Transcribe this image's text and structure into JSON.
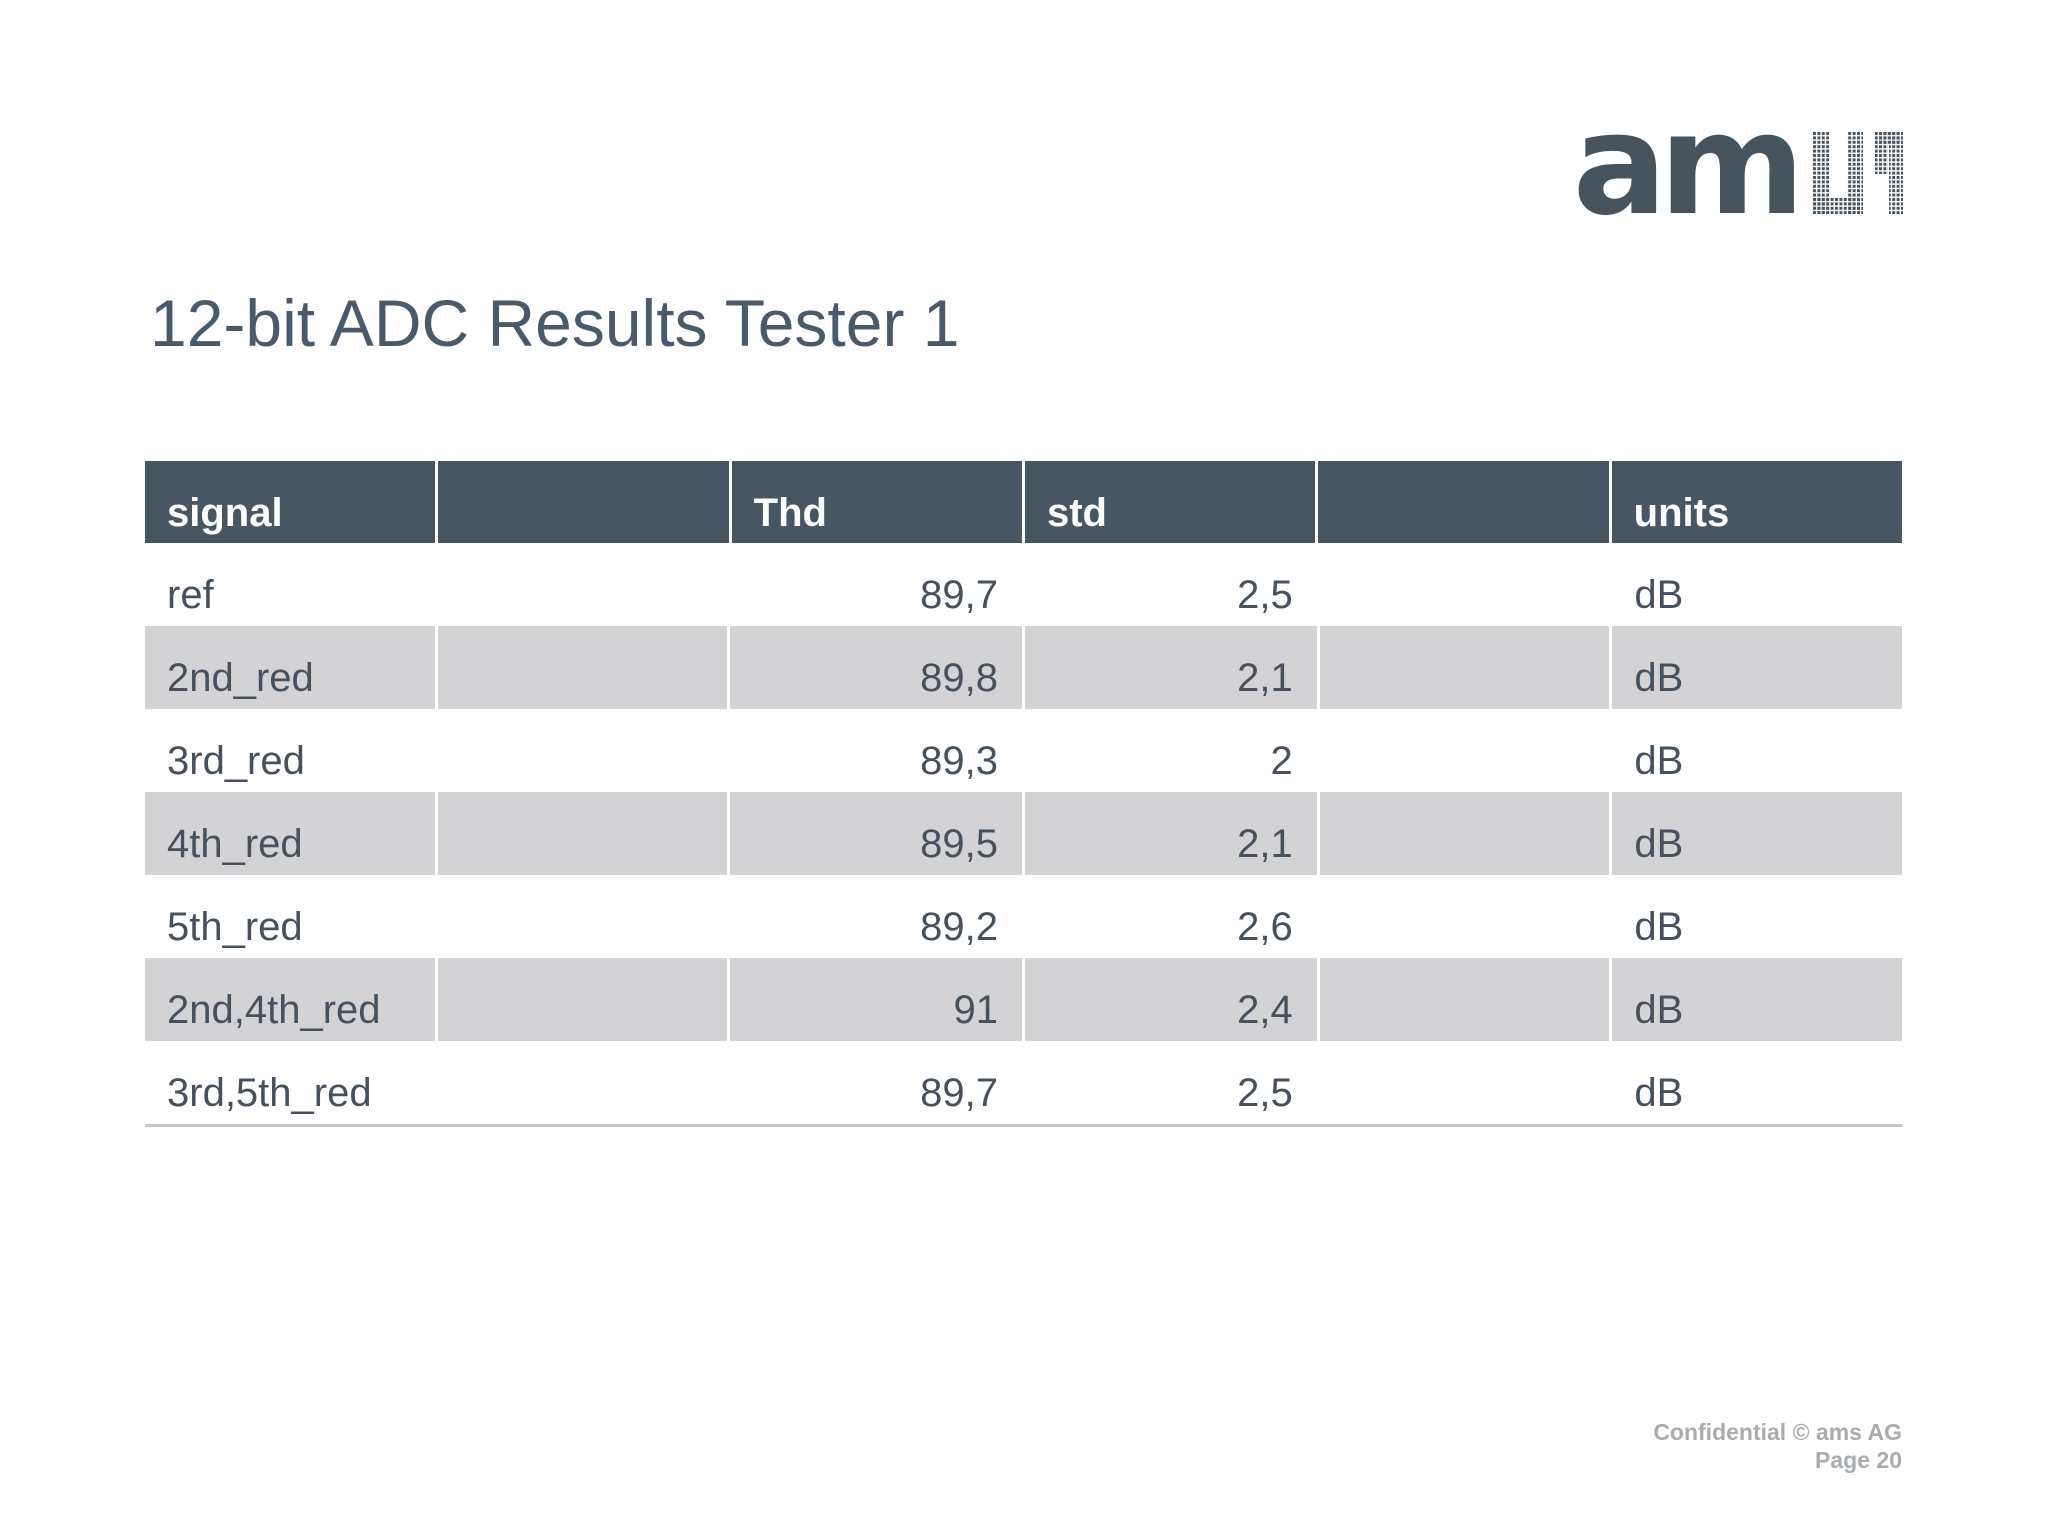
{
  "page": {
    "title": "12-bit ADC Results Tester 1"
  },
  "logo": {
    "text": "am",
    "name": "ams logo",
    "color": "#47545e"
  },
  "table": {
    "columns": [
      {
        "key": "signal",
        "label": "signal",
        "align": "left"
      },
      {
        "key": "col2",
        "label": "",
        "align": "left"
      },
      {
        "key": "thd",
        "label": "Thd",
        "align": "left"
      },
      {
        "key": "std",
        "label": "std",
        "align": "left"
      },
      {
        "key": "col5",
        "label": "",
        "align": "left"
      },
      {
        "key": "units",
        "label": "units",
        "align": "left"
      }
    ],
    "numeric_columns": [
      "thd",
      "std"
    ],
    "rows": [
      {
        "signal": "ref",
        "col2": "",
        "thd": "89,7",
        "std": "2,5",
        "col5": "",
        "units": "dB"
      },
      {
        "signal": "2nd_red",
        "col2": "",
        "thd": "89,8",
        "std": "2,1",
        "col5": "",
        "units": "dB"
      },
      {
        "signal": "3rd_red",
        "col2": "",
        "thd": "89,3",
        "std": "2",
        "col5": "",
        "units": "dB"
      },
      {
        "signal": "4th_red",
        "col2": "",
        "thd": "89,5",
        "std": "2,1",
        "col5": "",
        "units": "dB"
      },
      {
        "signal": "5th_red",
        "col2": "",
        "thd": "89,2",
        "std": "2,6",
        "col5": "",
        "units": "dB"
      },
      {
        "signal": "2nd,4th_red",
        "col2": "",
        "thd": "91",
        "std": "2,4",
        "col5": "",
        "units": "dB"
      },
      {
        "signal": "3rd,5th_red",
        "col2": "",
        "thd": "89,7",
        "std": "2,5",
        "col5": "",
        "units": "dB"
      }
    ]
  },
  "footer": {
    "line1": "Confidential © ams AG",
    "line2": "Page 20"
  },
  "colors": {
    "header_bg": "#475662",
    "header_text": "#ffffff",
    "row_alt_bg": "#d3d3d6",
    "body_text": "#46515d",
    "title_text": "#4b5a6a",
    "footer_text": "#a9acae",
    "table_bottom_line": "#c4c6c8"
  }
}
